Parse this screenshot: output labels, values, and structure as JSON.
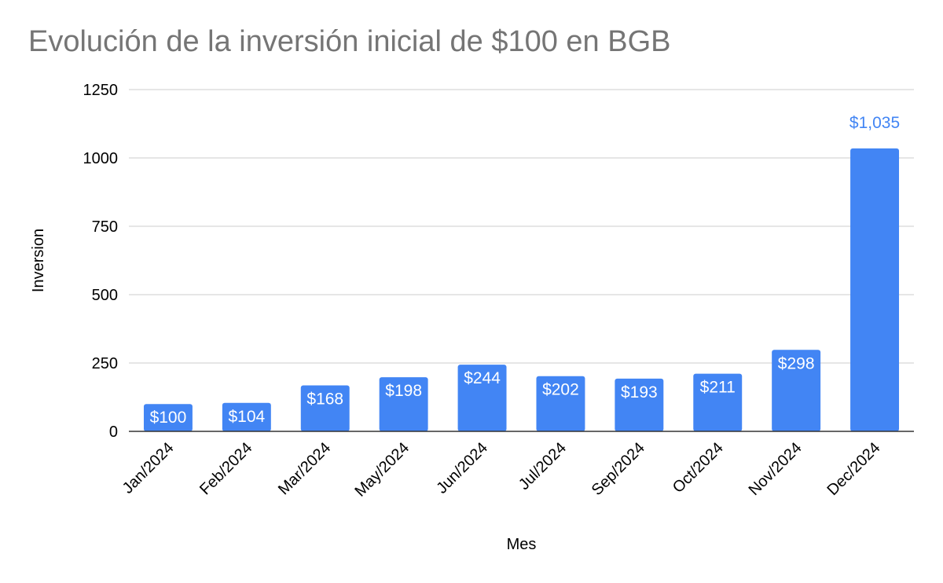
{
  "chart_data": {
    "type": "bar",
    "title": "Evolución de la inversión inicial de $100 en BGB",
    "xlabel": "Mes",
    "ylabel": "Inversion",
    "categories": [
      "Jan/2024",
      "Feb/2024",
      "Mar/2024",
      "May/2024",
      "Jun/2024",
      "Jul/2024",
      "Sep/2024",
      "Oct/2024",
      "Nov/2024",
      "Dec/2024"
    ],
    "values": [
      100,
      104,
      168,
      198,
      244,
      202,
      193,
      211,
      298,
      1035
    ],
    "data_labels": [
      "$100",
      "$104",
      "$168",
      "$198",
      "$244",
      "$202",
      "$193",
      "$211",
      "$298",
      "$1,035"
    ],
    "yticks": [
      0,
      250,
      500,
      750,
      1000,
      1250
    ],
    "ylim": [
      0,
      1250
    ],
    "grid": true,
    "legend": "none",
    "colors": {
      "bar": "#4285f4",
      "label_inside": "#ffffff",
      "label_outside": "#4285f4",
      "title": "#757575",
      "grid": "#cccccc",
      "axis": "#333333"
    }
  }
}
